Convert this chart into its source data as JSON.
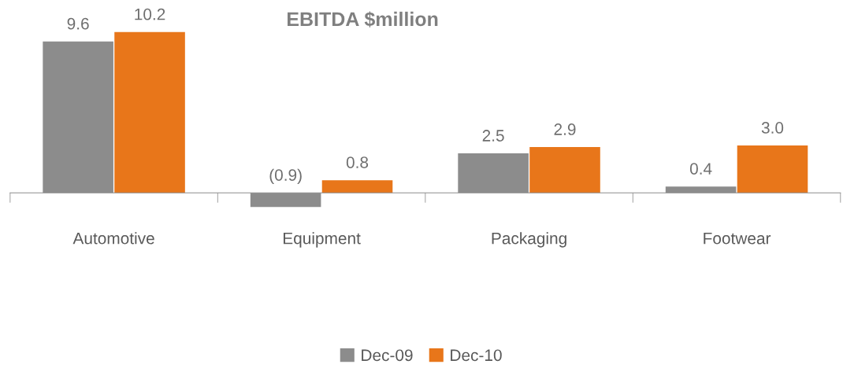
{
  "chart_data": {
    "type": "bar",
    "title": "EBITDA $million",
    "categories": [
      "Automotive",
      "Equipment",
      "Packaging",
      "Footwear"
    ],
    "series": [
      {
        "name": "Dec-09",
        "color": "#8c8c8c",
        "values": [
          9.6,
          -0.9,
          2.5,
          0.4
        ],
        "value_labels": [
          "9.6",
          "(0.9)",
          "2.5",
          "0.4"
        ]
      },
      {
        "name": "Dec-10",
        "color": "#e8761a",
        "values": [
          10.2,
          0.8,
          2.9,
          3.0
        ],
        "value_labels": [
          "10.2",
          "0.8",
          "2.9",
          "3.0"
        ]
      }
    ],
    "legend": "bottom",
    "grid": false
  }
}
